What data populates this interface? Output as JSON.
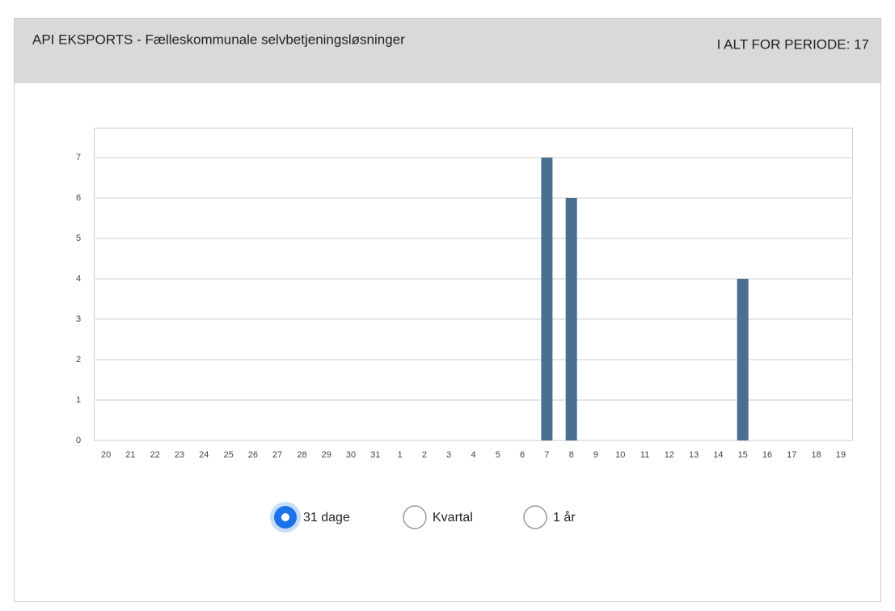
{
  "header": {
    "title": "API EKSPORTS - Fælleskommunale selvbetjeningsløsninger",
    "total": "I ALT FOR PERIODE: 17"
  },
  "chart_data": {
    "type": "bar",
    "categories": [
      "20",
      "21",
      "22",
      "23",
      "24",
      "25",
      "26",
      "27",
      "28",
      "29",
      "30",
      "31",
      "1",
      "2",
      "3",
      "4",
      "5",
      "6",
      "7",
      "8",
      "9",
      "10",
      "11",
      "12",
      "13",
      "14",
      "15",
      "16",
      "17",
      "18",
      "19"
    ],
    "values": [
      0,
      0,
      0,
      0,
      0,
      0,
      0,
      0,
      0,
      0,
      0,
      0,
      0,
      0,
      0,
      0,
      0,
      0,
      7,
      6,
      0,
      0,
      0,
      0,
      0,
      0,
      4,
      0,
      0,
      0,
      0
    ],
    "color": "#4a6f91",
    "ylim": [
      0,
      7.74
    ],
    "yticks": [
      0,
      1,
      2,
      3,
      4,
      5,
      6,
      7
    ],
    "grid": true
  },
  "period_options": {
    "options": [
      "31 dage",
      "Kvartal",
      "1 år"
    ],
    "selected": 0
  }
}
